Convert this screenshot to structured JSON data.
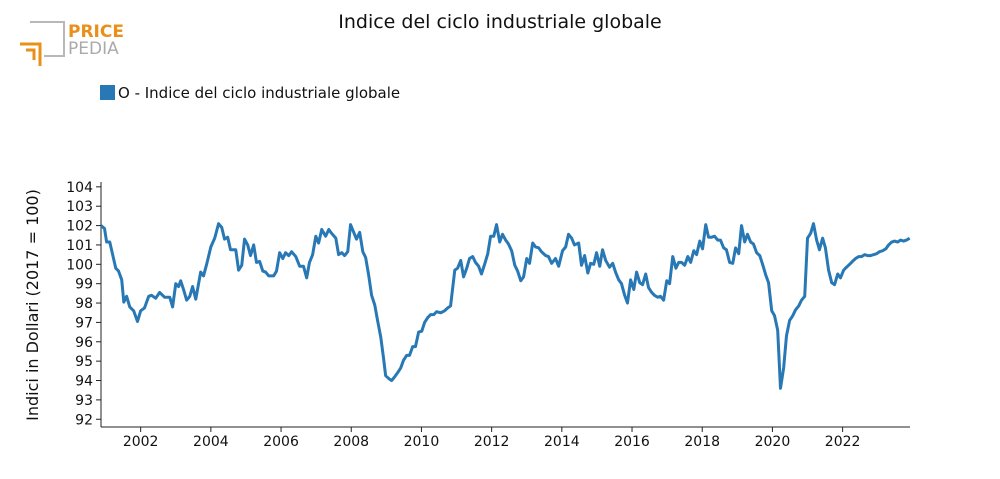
{
  "logo": {
    "line1": "PRICE",
    "line2": "PEDIA"
  },
  "chart_data": {
    "type": "line",
    "title": "Indice del ciclo industriale globale",
    "y_label": "Indici in Dollari (2017 = 100)",
    "legend": "top-left",
    "grid": false,
    "xlim": [
      2000.87,
      2023.92
    ],
    "xticks": [
      2002,
      2004,
      2006,
      2008,
      2010,
      2012,
      2014,
      2016,
      2018,
      2020,
      2022
    ],
    "ylim": [
      91.6,
      104.25
    ],
    "yticks": [
      92,
      93,
      94,
      95,
      96,
      97,
      98,
      99,
      100,
      101,
      102,
      103,
      104
    ],
    "x": [
      2000.87,
      2000.97,
      2001.03,
      2001.12,
      2001.29,
      2001.37,
      2001.46,
      2001.52,
      2001.6,
      2001.69,
      2001.8,
      2001.91,
      2002.0,
      2002.11,
      2002.23,
      2002.31,
      2002.43,
      2002.54,
      2002.68,
      2002.83,
      2002.91,
      2003.0,
      2003.08,
      2003.14,
      2003.23,
      2003.31,
      2003.4,
      2003.48,
      2003.57,
      2003.71,
      2003.79,
      2003.88,
      2004.0,
      2004.11,
      2004.22,
      2004.31,
      2004.39,
      2004.48,
      2004.56,
      2004.71,
      2004.79,
      2004.88,
      2004.96,
      2005.05,
      2005.13,
      2005.22,
      2005.3,
      2005.39,
      2005.48,
      2005.56,
      2005.65,
      2005.79,
      2005.87,
      2005.96,
      2006.05,
      2006.13,
      2006.22,
      2006.3,
      2006.42,
      2006.53,
      2006.64,
      2006.73,
      2006.81,
      2006.9,
      2006.99,
      2007.07,
      2007.16,
      2007.27,
      2007.36,
      2007.44,
      2007.56,
      2007.64,
      2007.73,
      2007.81,
      2007.9,
      2007.98,
      2008.07,
      2008.15,
      2008.24,
      2008.33,
      2008.41,
      2008.5,
      2008.58,
      2008.67,
      2008.75,
      2008.84,
      2008.92,
      2008.98,
      2009.07,
      2009.15,
      2009.24,
      2009.32,
      2009.41,
      2009.49,
      2009.58,
      2009.66,
      2009.75,
      2009.83,
      2009.92,
      2010.01,
      2010.09,
      2010.18,
      2010.26,
      2010.35,
      2010.43,
      2010.55,
      2010.66,
      2010.75,
      2010.83,
      2010.95,
      2011.03,
      2011.12,
      2011.2,
      2011.29,
      2011.37,
      2011.46,
      2011.54,
      2011.63,
      2011.71,
      2011.8,
      2011.89,
      2011.97,
      2012.06,
      2012.14,
      2012.23,
      2012.31,
      2012.4,
      2012.48,
      2012.57,
      2012.66,
      2012.74,
      2012.83,
      2012.91,
      2013.0,
      2013.08,
      2013.17,
      2013.25,
      2013.34,
      2013.42,
      2013.54,
      2013.62,
      2013.71,
      2013.82,
      2013.91,
      2014.02,
      2014.11,
      2014.19,
      2014.28,
      2014.36,
      2014.48,
      2014.56,
      2014.65,
      2014.74,
      2014.82,
      2014.91,
      2014.99,
      2015.08,
      2015.16,
      2015.25,
      2015.36,
      2015.45,
      2015.53,
      2015.62,
      2015.7,
      2015.79,
      2015.87,
      2015.96,
      2016.05,
      2016.13,
      2016.22,
      2016.3,
      2016.39,
      2016.47,
      2016.56,
      2016.64,
      2016.73,
      2016.81,
      2016.9,
      2016.99,
      2017.07,
      2017.16,
      2017.25,
      2017.33,
      2017.41,
      2017.5,
      2017.59,
      2017.67,
      2017.76,
      2017.84,
      2017.93,
      2018.01,
      2018.1,
      2018.18,
      2018.27,
      2018.35,
      2018.44,
      2018.52,
      2018.61,
      2018.69,
      2018.78,
      2018.87,
      2018.95,
      2019.04,
      2019.12,
      2019.21,
      2019.29,
      2019.38,
      2019.46,
      2019.55,
      2019.64,
      2019.72,
      2019.81,
      2019.89,
      2019.98,
      2020.06,
      2020.15,
      2020.23,
      2020.32,
      2020.4,
      2020.49,
      2020.58,
      2020.66,
      2020.75,
      2020.83,
      2020.92,
      2021.0,
      2021.09,
      2021.17,
      2021.26,
      2021.34,
      2021.43,
      2021.51,
      2021.6,
      2021.69,
      2021.77,
      2021.86,
      2021.94,
      2022.03,
      2022.11,
      2022.2,
      2022.28,
      2022.37,
      2022.46,
      2022.54,
      2022.63,
      2022.71,
      2022.8,
      2022.88,
      2022.97,
      2023.05,
      2023.14,
      2023.23,
      2023.31,
      2023.4,
      2023.48,
      2023.57,
      2023.65,
      2023.74,
      2023.82,
      2023.91
    ],
    "series": [
      {
        "name": "O - Indice del ciclo industriale globale",
        "color": "#2878b5",
        "values": [
          102.0,
          101.85,
          101.15,
          101.15,
          99.8,
          99.65,
          99.2,
          98.05,
          98.35,
          97.8,
          97.6,
          97.05,
          97.6,
          97.75,
          98.35,
          98.4,
          98.25,
          98.55,
          98.3,
          98.3,
          97.8,
          99.0,
          98.85,
          99.15,
          98.65,
          98.15,
          98.35,
          98.85,
          98.2,
          99.6,
          99.4,
          100.0,
          100.9,
          101.35,
          102.1,
          101.9,
          101.3,
          101.4,
          100.75,
          100.75,
          99.7,
          99.95,
          101.3,
          101.0,
          100.45,
          101.0,
          100.1,
          100.15,
          99.65,
          99.6,
          99.4,
          99.4,
          99.65,
          100.6,
          100.3,
          100.6,
          100.45,
          100.65,
          100.4,
          99.9,
          99.9,
          99.3,
          100.1,
          100.5,
          101.45,
          101.1,
          101.8,
          101.45,
          101.8,
          101.6,
          101.35,
          100.5,
          100.6,
          100.45,
          100.65,
          102.05,
          101.65,
          101.3,
          101.65,
          100.65,
          100.35,
          99.4,
          98.4,
          97.9,
          97.1,
          96.25,
          95.15,
          94.25,
          94.1,
          94.0,
          94.2,
          94.4,
          94.65,
          95.05,
          95.3,
          95.3,
          95.75,
          95.75,
          96.5,
          96.55,
          97.0,
          97.25,
          97.4,
          97.4,
          97.55,
          97.5,
          97.6,
          97.75,
          97.85,
          99.7,
          99.8,
          100.2,
          99.35,
          99.8,
          100.3,
          100.4,
          100.1,
          99.9,
          99.5,
          100.0,
          100.55,
          101.45,
          101.45,
          102.05,
          101.15,
          101.55,
          101.25,
          101.05,
          100.7,
          99.95,
          99.65,
          99.15,
          99.35,
          100.3,
          100.05,
          101.1,
          100.9,
          100.85,
          100.65,
          100.45,
          100.4,
          100.05,
          100.3,
          99.9,
          100.7,
          100.9,
          101.55,
          101.35,
          101.0,
          101.1,
          99.95,
          100.45,
          99.55,
          100.05,
          100.0,
          100.6,
          99.9,
          100.75,
          100.2,
          99.85,
          100.05,
          99.6,
          99.2,
          99.0,
          98.4,
          98.0,
          99.2,
          98.7,
          99.6,
          99.05,
          98.95,
          99.5,
          98.8,
          98.55,
          98.4,
          98.3,
          98.35,
          98.15,
          99.15,
          99.0,
          100.4,
          99.8,
          100.1,
          100.1,
          99.95,
          100.4,
          100.1,
          100.7,
          100.5,
          101.2,
          100.8,
          102.05,
          101.4,
          101.4,
          101.45,
          101.25,
          101.25,
          100.85,
          100.75,
          100.1,
          100.05,
          100.85,
          100.55,
          102.0,
          101.15,
          101.55,
          101.15,
          101.05,
          100.6,
          100.45,
          100.0,
          99.45,
          99.05,
          97.6,
          97.35,
          96.6,
          93.6,
          94.65,
          96.3,
          97.1,
          97.35,
          97.65,
          97.85,
          98.15,
          98.35,
          101.35,
          101.6,
          102.1,
          101.25,
          100.75,
          101.35,
          100.85,
          99.7,
          99.05,
          98.95,
          99.5,
          99.3,
          99.7,
          99.85,
          100.0,
          100.15,
          100.3,
          100.4,
          100.4,
          100.5,
          100.45,
          100.45,
          100.5,
          100.55,
          100.65,
          100.7,
          100.8,
          101.0,
          101.15,
          101.2,
          101.15,
          101.25,
          101.2,
          101.25,
          101.35
        ]
      }
    ]
  }
}
